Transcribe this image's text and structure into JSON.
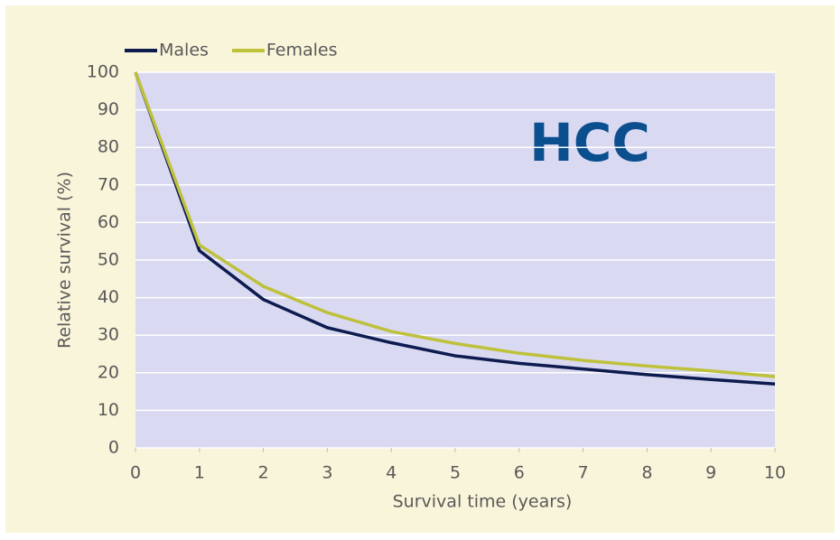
{
  "chart_data": {
    "type": "line",
    "annotation": "HCC",
    "x_label": "Survival time (years)",
    "y_label": "Relative survival (%)",
    "x": [
      0,
      1,
      2,
      3,
      4,
      5,
      6,
      7,
      8,
      9,
      10
    ],
    "series": [
      {
        "name": "Males",
        "color": "#0d1b4f",
        "values": [
          100,
          52.5,
          39.5,
          32,
          28,
          24.5,
          22.5,
          21,
          19.5,
          18.2,
          17
        ]
      },
      {
        "name": "Females",
        "color": "#bec13a",
        "values": [
          100,
          54,
          43,
          36,
          31,
          27.8,
          25.2,
          23.3,
          21.8,
          20.5,
          19
        ]
      }
    ],
    "xlim": [
      0,
      10
    ],
    "xticks": [
      0,
      1,
      2,
      3,
      4,
      5,
      6,
      7,
      8,
      9,
      10
    ],
    "ylim": [
      0,
      100
    ],
    "yticks": [
      0,
      10,
      20,
      30,
      40,
      50,
      60,
      70,
      80,
      90,
      100
    ],
    "grid": true,
    "legend": "top-left"
  }
}
